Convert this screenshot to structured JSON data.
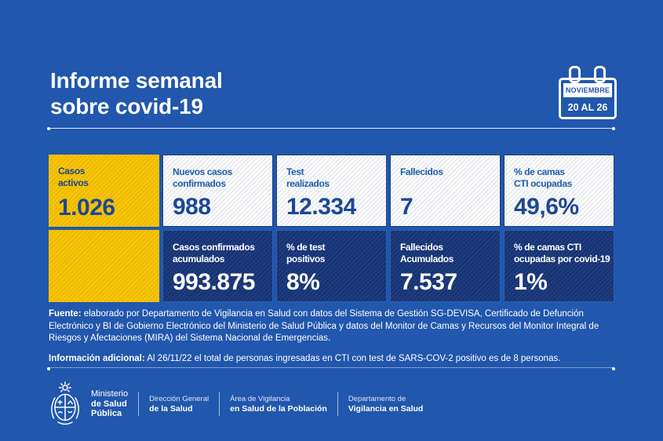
{
  "header": {
    "title_line1": "Informe semanal",
    "title_line2": "sobre covid-19",
    "calendar": {
      "month": "NOVIEMBRE",
      "range": "20 AL 26"
    }
  },
  "cards": {
    "row1": [
      {
        "label": "Casos\nactivos",
        "value": "1.026",
        "style": "yellow"
      },
      {
        "label": "Nuevos casos\nconfirmados",
        "value": "988",
        "style": "light"
      },
      {
        "label": "Test\nrealizados",
        "value": "12.334",
        "style": "light"
      },
      {
        "label": "Fallecidos",
        "value": "7",
        "style": "light"
      },
      {
        "label": "% de camas\nCTI ocupadas",
        "value": "49,6%",
        "style": "light"
      }
    ],
    "row2": [
      {
        "label": "",
        "value": "",
        "style": "yellow"
      },
      {
        "label": "Casos confirmados\nacumulados",
        "value": "993.875",
        "style": "dark"
      },
      {
        "label": "% de test\npositivos",
        "value": "8%",
        "style": "dark"
      },
      {
        "label": "Fallecidos\nAcumulados",
        "value": "7.537",
        "style": "dark"
      },
      {
        "label": "% de camas CTI\nocupadas por covid-19",
        "value": "1%",
        "style": "dark"
      }
    ]
  },
  "source": {
    "label": "Fuente:",
    "text": " elaborado por Departamento de Vigilancia en Salud con datos del Sistema de Gestión SG-DEVISA, Certificado de Defunción Electrónico y BI de Gobierno Electrónico del Ministerio de Salud Pública y datos del Monitor de Camas y Recursos del Monitor Integral de Riesgos y Afectaciones (MIRA) del Sistema Nacional de Emergencias."
  },
  "additional": {
    "label": "Información adicional:",
    "text": " Al 26/11/22 el total de personas ingresadas en CTI con test de SARS-COV-2 positivo es de 8 personas."
  },
  "footer": {
    "ministry_lines": [
      "Ministerio",
      "de Salud",
      "Pública"
    ],
    "departments": [
      {
        "line1": "Dirección General",
        "line2": "de la Salud"
      },
      {
        "line1": "Área de Vigilancia",
        "line2": "en Salud de la Población"
      },
      {
        "line1": "Departamento de",
        "line2": "Vigilancia en Salud"
      }
    ]
  },
  "colors": {
    "background": "#2157ac",
    "yellow_card": "#fcc703",
    "navy_card": "#1d3c7f",
    "light_card": "#ffffff",
    "label_blue": "#1f5dad",
    "value_navy": "#1d4795",
    "text_white": "#ffffff"
  }
}
